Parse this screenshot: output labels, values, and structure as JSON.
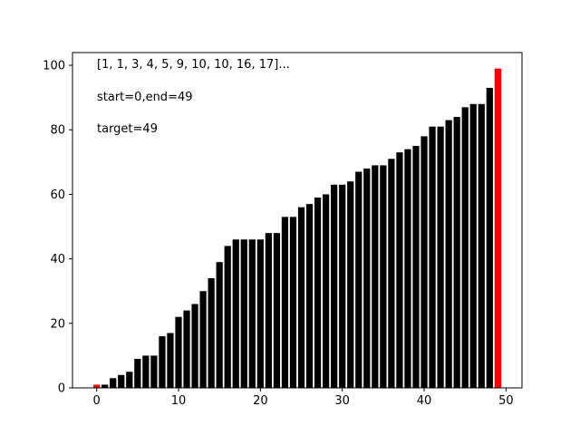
{
  "chart_data": {
    "type": "bar",
    "x": [
      0,
      1,
      2,
      3,
      4,
      5,
      6,
      7,
      8,
      9,
      10,
      11,
      12,
      13,
      14,
      15,
      16,
      17,
      18,
      19,
      20,
      21,
      22,
      23,
      24,
      25,
      26,
      27,
      28,
      29,
      30,
      31,
      32,
      33,
      34,
      35,
      36,
      37,
      38,
      39,
      40,
      41,
      42,
      43,
      44,
      45,
      46,
      47,
      48,
      49
    ],
    "values": [
      1,
      1,
      3,
      4,
      5,
      9,
      10,
      10,
      16,
      17,
      22,
      24,
      26,
      30,
      34,
      39,
      44,
      46,
      46,
      46,
      46,
      48,
      48,
      53,
      53,
      56,
      57,
      59,
      60,
      63,
      63,
      64,
      67,
      68,
      69,
      69,
      71,
      73,
      74,
      75,
      78,
      81,
      81,
      83,
      84,
      87,
      88,
      88,
      93,
      99
    ],
    "highlight_indices": [
      0,
      49
    ],
    "colors": {
      "bar": "#000000",
      "highlight": "#ff0000"
    },
    "xlim": [
      -2.95,
      51.95
    ],
    "ylim": [
      0,
      103.95
    ],
    "x_ticks": [
      0,
      10,
      20,
      30,
      40,
      50
    ],
    "y_ticks": [
      0,
      20,
      40,
      60,
      80,
      100
    ],
    "annotations": [
      "[1, 1, 3, 4, 5, 9, 10, 10, 16, 17]...",
      "start=0,end=49",
      "target=49"
    ],
    "grid": false,
    "legend": false
  }
}
